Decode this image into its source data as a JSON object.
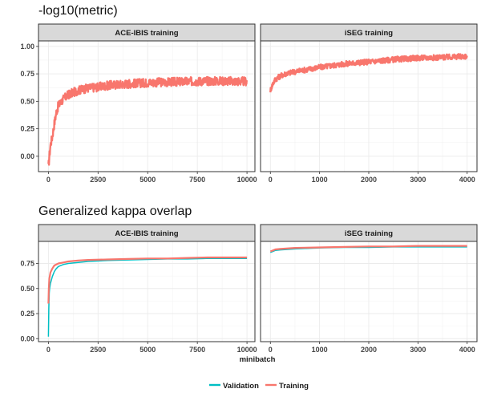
{
  "sections": [
    {
      "title": "-log10(metric)"
    },
    {
      "title": "Generalized kappa overlap"
    }
  ],
  "xlabel": "minibatch",
  "legend": {
    "position": "bottom",
    "items": [
      {
        "name": "Validation",
        "color": "#00BFC4"
      },
      {
        "name": "Training",
        "color": "#F8766D"
      }
    ]
  },
  "colors": {
    "training": "#F8766D",
    "validation": "#00BFC4",
    "strip_bg": "#D9D9D9",
    "panel_border": "#333333",
    "grid": "#EBEBEB"
  },
  "chart_data": [
    {
      "type": "line",
      "section": "-log10(metric)",
      "facet": "ACE-IBIS training",
      "xlim": [
        -500,
        10400
      ],
      "ylim": [
        -0.14,
        1.05
      ],
      "xticks": [
        0,
        2500,
        5000,
        7500,
        10000
      ],
      "yticks": [
        0.0,
        0.25,
        0.5,
        0.75,
        1.0
      ],
      "xtick_labels": [
        "0",
        "2500",
        "5000",
        "7500",
        "10000"
      ],
      "ytick_labels": [
        "0.00",
        "0.25",
        "0.50",
        "0.75",
        "1.00"
      ],
      "series": [
        {
          "name": "Training",
          "x": [
            0,
            50,
            100,
            200,
            300,
            400,
            500,
            750,
            1000,
            1500,
            2000,
            2500,
            3000,
            4000,
            5000,
            6000,
            7000,
            8000,
            9000,
            10000
          ],
          "y": [
            -0.1,
            0.0,
            0.1,
            0.18,
            0.3,
            0.4,
            0.46,
            0.52,
            0.56,
            0.6,
            0.62,
            0.63,
            0.645,
            0.66,
            0.67,
            0.675,
            0.68,
            0.685,
            0.685,
            0.68
          ],
          "spread": 0.04
        }
      ]
    },
    {
      "type": "line",
      "section": "-log10(metric)",
      "facet": "iSEG training",
      "xlim": [
        -200,
        4200
      ],
      "ylim": [
        -0.14,
        1.05
      ],
      "xticks": [
        0,
        1000,
        2000,
        3000,
        4000
      ],
      "yticks": [
        0.0,
        0.25,
        0.5,
        0.75,
        1.0
      ],
      "xtick_labels": [
        "0",
        "1000",
        "2000",
        "3000",
        "4000"
      ],
      "series": [
        {
          "name": "Training",
          "x": [
            0,
            50,
            100,
            200,
            300,
            500,
            750,
            1000,
            1500,
            2000,
            2500,
            3000,
            3500,
            4000
          ],
          "y": [
            0.6,
            0.66,
            0.7,
            0.73,
            0.75,
            0.77,
            0.79,
            0.81,
            0.84,
            0.86,
            0.88,
            0.895,
            0.9,
            0.91
          ],
          "spread": 0.025
        }
      ]
    },
    {
      "type": "line",
      "section": "Generalized kappa overlap",
      "facet": "ACE-IBIS training",
      "xlim": [
        -500,
        10400
      ],
      "ylim": [
        -0.03,
        0.97
      ],
      "xticks": [
        0,
        2500,
        5000,
        7500,
        10000
      ],
      "yticks": [
        0.0,
        0.25,
        0.5,
        0.75
      ],
      "xtick_labels": [
        "0",
        "2500",
        "5000",
        "7500",
        "10000"
      ],
      "ytick_labels": [
        "0.00",
        "0.25",
        "0.50",
        "0.75"
      ],
      "series": [
        {
          "name": "Validation",
          "x": [
            0,
            20,
            40,
            60,
            100,
            200,
            300,
            400,
            500,
            750,
            1000,
            1500,
            2000,
            3000,
            4000,
            5000,
            6000,
            7000,
            8000,
            9000,
            10000
          ],
          "y": [
            0.02,
            0.3,
            0.45,
            0.5,
            0.55,
            0.62,
            0.67,
            0.7,
            0.72,
            0.74,
            0.75,
            0.76,
            0.77,
            0.78,
            0.785,
            0.79,
            0.795,
            0.795,
            0.8,
            0.8,
            0.8
          ]
        },
        {
          "name": "Training",
          "x": [
            0,
            20,
            50,
            100,
            200,
            300,
            500,
            750,
            1000,
            1500,
            2000,
            3000,
            4000,
            5000,
            6000,
            7000,
            8000,
            9000,
            10000
          ],
          "y": [
            0.35,
            0.5,
            0.6,
            0.66,
            0.7,
            0.73,
            0.75,
            0.76,
            0.77,
            0.78,
            0.785,
            0.79,
            0.795,
            0.8,
            0.8,
            0.805,
            0.81,
            0.81,
            0.81
          ]
        }
      ]
    },
    {
      "type": "line",
      "section": "Generalized kappa overlap",
      "facet": "iSEG training",
      "xlim": [
        -200,
        4200
      ],
      "ylim": [
        -0.03,
        0.97
      ],
      "xticks": [
        0,
        1000,
        2000,
        3000,
        4000
      ],
      "yticks": [
        0.0,
        0.25,
        0.5,
        0.75
      ],
      "xtick_labels": [
        "0",
        "1000",
        "2000",
        "3000",
        "4000"
      ],
      "series": [
        {
          "name": "Validation",
          "x": [
            0,
            50,
            100,
            200,
            500,
            1000,
            1500,
            2000,
            2500,
            3000,
            3500,
            4000
          ],
          "y": [
            0.86,
            0.87,
            0.88,
            0.885,
            0.895,
            0.905,
            0.91,
            0.91,
            0.915,
            0.915,
            0.915,
            0.915
          ]
        },
        {
          "name": "Training",
          "x": [
            0,
            50,
            100,
            200,
            500,
            1000,
            1500,
            2000,
            2500,
            3000,
            3500,
            4000
          ],
          "y": [
            0.87,
            0.88,
            0.89,
            0.895,
            0.905,
            0.91,
            0.915,
            0.92,
            0.92,
            0.925,
            0.925,
            0.925
          ]
        }
      ]
    }
  ]
}
